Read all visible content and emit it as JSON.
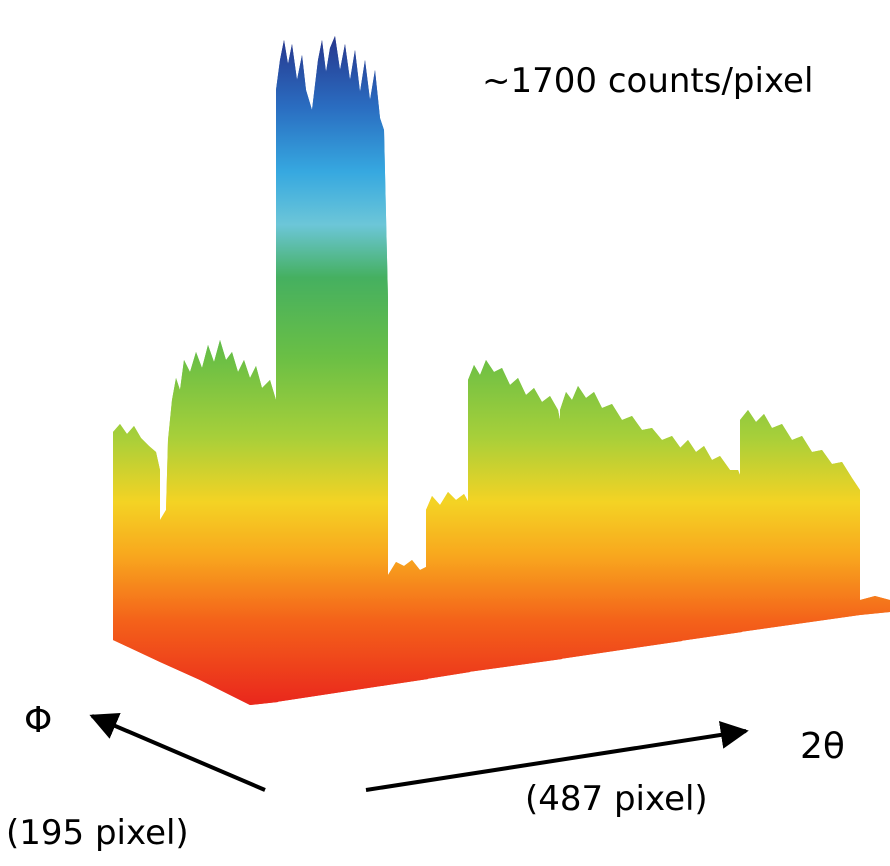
{
  "annotation": "~1700 counts/pixel",
  "axes": {
    "phi": {
      "label": "Φ",
      "size": "(195 pixel)"
    },
    "two_theta": {
      "label": "2θ",
      "size": "(487 pixel)"
    }
  }
}
